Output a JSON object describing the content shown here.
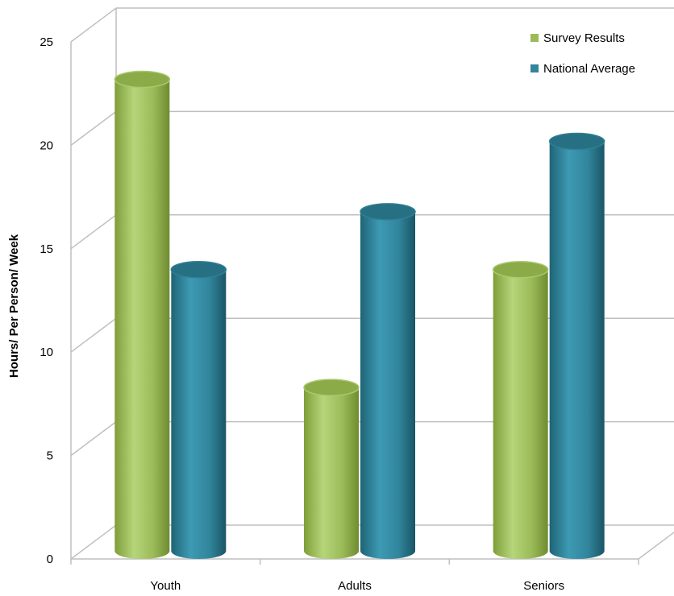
{
  "chart_data": {
    "type": "bar",
    "style": "3d-cylinder",
    "categories": [
      "Youth",
      "Adults",
      "Seniors"
    ],
    "series": [
      {
        "name": "Survey Results",
        "values": [
          22.8,
          7.9,
          13.6
        ],
        "color": "#9BBB59"
      },
      {
        "name": "National Average",
        "values": [
          13.6,
          16.4,
          19.8
        ],
        "color": "#31859C"
      }
    ],
    "xlabel": "",
    "ylabel": "Hours/ Per Person/ Week",
    "ylim": [
      0,
      25
    ],
    "yticks": [
      "0",
      "5",
      "10",
      "15",
      "20",
      "25"
    ],
    "grid": true,
    "legend_position": "top-right"
  }
}
